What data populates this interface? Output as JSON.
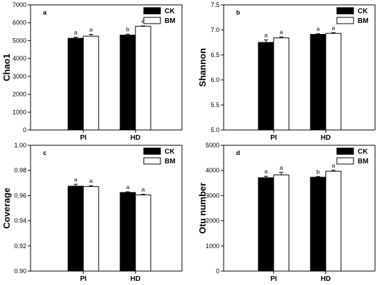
{
  "colors": {
    "CK": "#000000",
    "BM": "#ffffff",
    "axis": "#000000"
  },
  "chart_data": [
    {
      "type": "bar",
      "panel_label": "a",
      "ylabel": "Chao1",
      "ylim": [
        0,
        7000
      ],
      "yticks": [
        0,
        1000,
        2000,
        3000,
        4000,
        5000,
        6000,
        7000
      ],
      "categories": [
        "PI",
        "HD"
      ],
      "series": [
        {
          "name": "CK",
          "values": [
            5130,
            5310
          ],
          "errors": [
            60,
            50
          ],
          "labels": [
            "a",
            "b"
          ]
        },
        {
          "name": "BM",
          "values": [
            5250,
            5800
          ],
          "errors": [
            100,
            25
          ],
          "labels": [
            "a",
            "a"
          ]
        }
      ],
      "legend": "top-right"
    },
    {
      "type": "bar",
      "panel_label": "b",
      "ylabel": "Shannon",
      "ylim": [
        5.0,
        7.5
      ],
      "yticks": [
        5.0,
        5.5,
        6.0,
        6.5,
        7.0,
        7.5
      ],
      "categories": [
        "PI",
        "HD"
      ],
      "series": [
        {
          "name": "CK",
          "values": [
            6.75,
            6.91
          ],
          "errors": [
            0.05,
            0.015
          ],
          "labels": [
            "a",
            "a"
          ]
        },
        {
          "name": "BM",
          "values": [
            6.84,
            6.93
          ],
          "errors": [
            0.02,
            0.015
          ],
          "labels": [
            "a",
            "a"
          ]
        }
      ],
      "legend": "top-right"
    },
    {
      "type": "bar",
      "panel_label": "c",
      "ylabel": "Coverage",
      "ylim": [
        0.9,
        1.0
      ],
      "yticks": [
        0.9,
        0.92,
        0.94,
        0.96,
        0.98,
        1.0
      ],
      "categories": [
        "PI",
        "HD"
      ],
      "series": [
        {
          "name": "CK",
          "values": [
            0.9675,
            0.9625
          ],
          "errors": [
            0.0015,
            0.0005
          ],
          "labels": [
            "a",
            "a"
          ]
        },
        {
          "name": "BM",
          "values": [
            0.9672,
            0.9606
          ],
          "errors": [
            0.0007,
            0.0005
          ],
          "labels": [
            "a",
            "a"
          ]
        }
      ],
      "legend": "top-right"
    },
    {
      "type": "bar",
      "panel_label": "d",
      "ylabel": "Otu number",
      "ylim": [
        0,
        5000
      ],
      "yticks": [
        0,
        1000,
        2000,
        3000,
        4000,
        5000
      ],
      "categories": [
        "PI",
        "HD"
      ],
      "series": [
        {
          "name": "CK",
          "values": [
            3710,
            3730
          ],
          "errors": [
            60,
            30
          ],
          "labels": [
            "a",
            "b"
          ]
        },
        {
          "name": "BM",
          "values": [
            3820,
            3970
          ],
          "errors": [
            100,
            40
          ],
          "labels": [
            "a",
            "a"
          ]
        }
      ],
      "legend": "top-right"
    }
  ]
}
